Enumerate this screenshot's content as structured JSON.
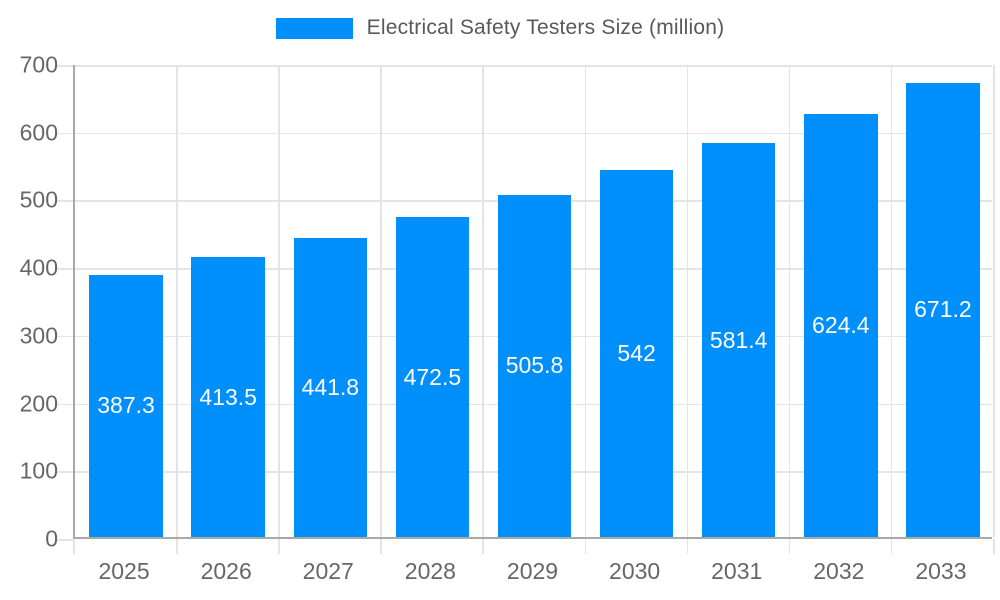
{
  "legend": {
    "label": "Electrical Safety Testers Size (million)"
  },
  "colors": {
    "bar": "#008FFB",
    "axis_line": "#a9a9a9",
    "grid_line": "#e4e4e4",
    "tick_label_text": "#666666",
    "legend_text": "#595959",
    "value_label_text": "#ffffff",
    "background": "#ffffff"
  },
  "chart_data": {
    "type": "bar",
    "title": "Electrical Safety Testers Size (million)",
    "categories": [
      "2025",
      "2026",
      "2027",
      "2028",
      "2029",
      "2030",
      "2031",
      "2032",
      "2033"
    ],
    "values": [
      387.3,
      413.5,
      441.8,
      472.5,
      505.8,
      542,
      581.4,
      624.4,
      671.2
    ],
    "value_labels": [
      "387.3",
      "413.5",
      "441.8",
      "472.5",
      "505.8",
      "542",
      "581.4",
      "624.4",
      "671.2"
    ],
    "xlabel": "",
    "ylabel": "",
    "ylim": [
      0,
      700
    ],
    "ytick_step": 100,
    "ytick_labels": [
      "0",
      "100",
      "200",
      "300",
      "400",
      "500",
      "600",
      "700"
    ],
    "grid": true,
    "legend_position": "top",
    "value_label_position": "center-of-bar",
    "bar_width_fraction": 0.72
  }
}
